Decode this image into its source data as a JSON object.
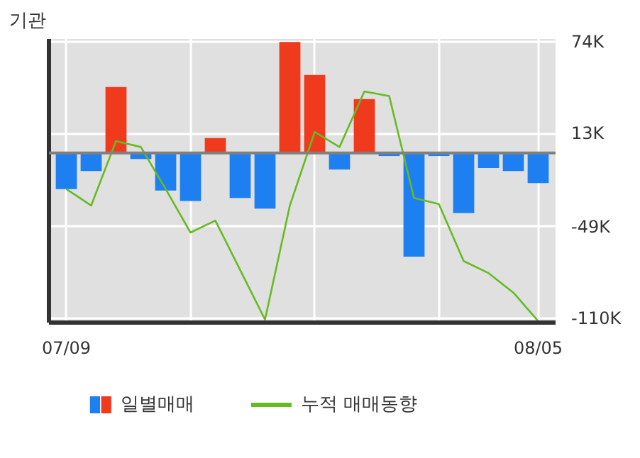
{
  "chart_data": {
    "type": "bar",
    "title": "기관",
    "categories": [
      "07/09",
      null,
      null,
      null,
      null,
      null,
      null,
      null,
      null,
      null,
      null,
      null,
      null,
      null,
      null,
      null,
      null,
      null,
      null,
      "08/05"
    ],
    "series": [
      {
        "name": "일별매매",
        "colors": [
          "#1e7ff0",
          "#1e7ff0",
          "#f03a1e",
          "#1e7ff0",
          "#1e7ff0",
          "#1e7ff0",
          "#f03a1e",
          "#1e7ff0",
          "#1e7ff0",
          "#f03a1e",
          "#f03a1e",
          "#1e7ff0",
          "#f03a1e",
          "#1e7ff0",
          "#1e7ff0",
          "#1e7ff0",
          "#1e7ff0",
          "#1e7ff0",
          "#1e7ff0",
          "#1e7ff0"
        ],
        "values": [
          -24,
          -12,
          44,
          -4,
          -25,
          -32,
          10,
          -30,
          -37,
          74,
          52,
          -11,
          36,
          -2,
          -69,
          -2,
          -40,
          -10,
          -12,
          -20
        ]
      },
      {
        "name": "누적 매매동향",
        "type": "line",
        "color": "#66bb22",
        "values": [
          -24,
          -35,
          8,
          4,
          -24,
          -53,
          -45,
          -78,
          -111,
          -35,
          14,
          4,
          41,
          38,
          -30,
          -34,
          -72,
          -80,
          -93,
          -112
        ]
      }
    ],
    "ylim": [
      -113,
      76
    ],
    "yticks": [
      {
        "value": 74,
        "label": "74K"
      },
      {
        "value": 13,
        "label": "13K"
      },
      {
        "value": -49,
        "label": "-49K"
      },
      {
        "value": -110,
        "label": "-110K"
      }
    ],
    "grid": true,
    "legend": "bottom"
  }
}
